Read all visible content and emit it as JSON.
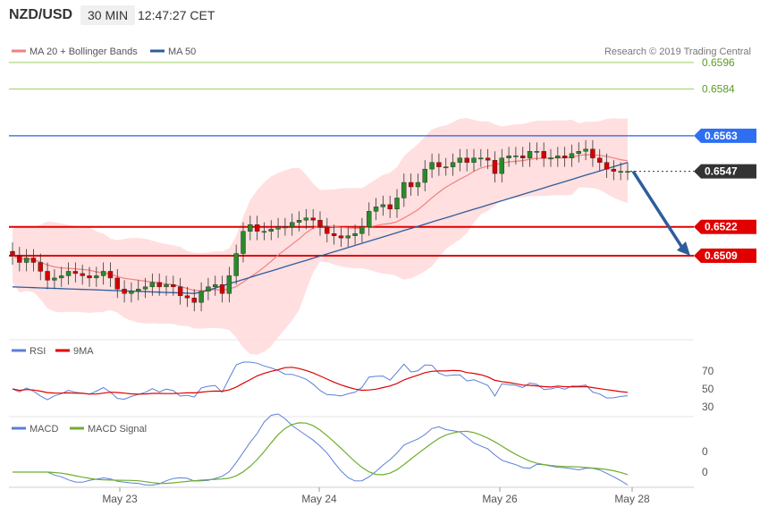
{
  "header": {
    "symbol": "NZD/USD",
    "timeframe": "30 MIN",
    "clock": "12:47:27 CET"
  },
  "credit": "Research © 2019 Trading Central",
  "legend": {
    "main": [
      {
        "name": "MA 20 + Bollinger Bands",
        "color": "#f08080"
      },
      {
        "name": "MA 50",
        "color": "#2e5d9c"
      }
    ],
    "rsi": [
      {
        "name": "RSI",
        "color": "#5b7fd6"
      },
      {
        "name": "9MA",
        "color": "#e00000"
      }
    ],
    "macd": [
      {
        "name": "MACD",
        "color": "#5b7fd6"
      },
      {
        "name": "MACD Signal",
        "color": "#6fae2e"
      }
    ]
  },
  "colors": {
    "up_candle": "#2a8a2a",
    "down_candle": "#d40000",
    "band_fill": "#ffd9d9",
    "target_arrow": "#2e5d9c",
    "support_resistance": "#e00000",
    "ma50": "#2e5d9c",
    "level_green": "#9ccc65"
  },
  "chart_data": {
    "type": "line",
    "x_ticks": [
      "May 23",
      "May 24",
      "May 26",
      "May 28"
    ],
    "price_levels": [
      {
        "label": "0.6596",
        "value": 0.6596,
        "style": "green"
      },
      {
        "label": "0.6584",
        "value": 0.6584,
        "style": "green"
      },
      {
        "label": "0.6563",
        "value": 0.6563,
        "style": "blue"
      },
      {
        "label": "0.6547",
        "value": 0.6547,
        "style": "current"
      },
      {
        "label": "0.6522",
        "value": 0.6522,
        "style": "red"
      },
      {
        "label": "0.6509",
        "value": 0.6509,
        "style": "red"
      }
    ],
    "price_range": [
      0.6472,
      0.6608
    ],
    "close_series": [
      0.6509,
      0.6506,
      0.6508,
      0.6506,
      0.6502,
      0.6498,
      0.6499,
      0.65,
      0.6502,
      0.6501,
      0.65,
      0.6499,
      0.65,
      0.6502,
      0.6499,
      0.6494,
      0.6492,
      0.6493,
      0.6494,
      0.6495,
      0.6497,
      0.6495,
      0.6496,
      0.6495,
      0.6491,
      0.649,
      0.6488,
      0.6493,
      0.6495,
      0.6496,
      0.6492,
      0.65,
      0.651,
      0.652,
      0.6523,
      0.652,
      0.652,
      0.6521,
      0.6522,
      0.6522,
      0.6524,
      0.6525,
      0.6526,
      0.6525,
      0.6522,
      0.6519,
      0.6518,
      0.6517,
      0.6518,
      0.6519,
      0.6522,
      0.6529,
      0.6531,
      0.6532,
      0.653,
      0.6535,
      0.6542,
      0.654,
      0.6542,
      0.6548,
      0.6551,
      0.6549,
      0.6549,
      0.6551,
      0.6553,
      0.6551,
      0.6553,
      0.6553,
      0.6552,
      0.6546,
      0.6553,
      0.6554,
      0.6554,
      0.6553,
      0.6556,
      0.6556,
      0.6553,
      0.6553,
      0.6554,
      0.6553,
      0.6555,
      0.6556,
      0.6557,
      0.6553,
      0.6551,
      0.6548,
      0.6547,
      0.6547,
      0.6547
    ],
    "ma50_range": [
      0.6492,
      0.6551
    ],
    "rsi": {
      "axis_ticks": [
        70,
        50,
        30
      ],
      "range": [
        20,
        85
      ]
    },
    "macd": {
      "axis_ticks": [
        "0",
        "0"
      ]
    },
    "forecast_target": 0.6509
  }
}
